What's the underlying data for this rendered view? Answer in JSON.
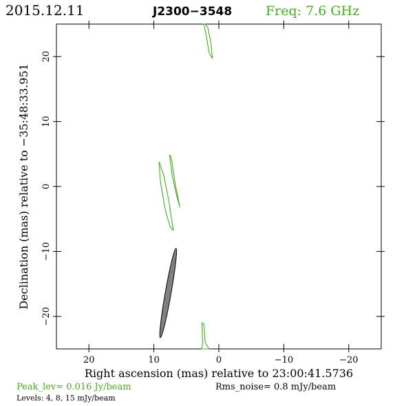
{
  "header": {
    "date": "2015.12.11",
    "source": "J2300−3548",
    "frequency": "Freq: 7.6 GHz"
  },
  "footer": {
    "peak": "Peak_lev=  0.016 Jy/beam",
    "rms": "Rms_noise=  0.8 mJy/beam",
    "levels": "Levels:  4,  8,  15 mJy/beam"
  },
  "colors": {
    "contour": "#44aa22",
    "beam_fill": "#808080",
    "frame": "#000000"
  },
  "chart_data": {
    "type": "contour",
    "title": "J2300−3548",
    "xlabel": "Right ascension (mas) relative to 23:00:41.5736",
    "ylabel": "Declination (mas) relative to −35:48:33.951",
    "xlim": [
      25,
      -25
    ],
    "ylim": [
      -25,
      25
    ],
    "x_ticks": [
      20,
      10,
      0,
      -10,
      -20
    ],
    "y_ticks": [
      -20,
      -10,
      0,
      10,
      20
    ],
    "x_tick_labels": [
      "20",
      "10",
      "0",
      "−10",
      "−20"
    ],
    "y_tick_labels": [
      "−20",
      "−10",
      "0",
      "10",
      "20"
    ],
    "levels_mJy_per_beam": [
      4,
      8,
      15
    ],
    "contours": [
      {
        "points": [
          [
            1.0,
            19.7
          ],
          [
            1.2,
            22.0
          ],
          [
            1.7,
            24.5
          ],
          [
            2.1,
            25.0
          ],
          [
            2.3,
            25.0
          ],
          [
            1.9,
            23.0
          ],
          [
            1.5,
            20.6
          ],
          [
            1.0,
            19.7
          ]
        ]
      },
      {
        "points": [
          [
            6.0,
            -3.2
          ],
          [
            6.7,
            0.3
          ],
          [
            7.3,
            4.3
          ],
          [
            7.6,
            4.9
          ],
          [
            7.2,
            1.8
          ],
          [
            6.5,
            -1.3
          ],
          [
            6.0,
            -3.2
          ]
        ]
      },
      {
        "points": [
          [
            7.0,
            -6.8
          ],
          [
            7.7,
            -2.2
          ],
          [
            8.5,
            1.8
          ],
          [
            9.2,
            3.8
          ],
          [
            9.0,
            0.8
          ],
          [
            8.2,
            -3.8
          ],
          [
            7.5,
            -6.2
          ],
          [
            7.0,
            -6.8
          ]
        ]
      },
      {
        "points": [
          [
            1.5,
            -25.0
          ],
          [
            2.1,
            -24.0
          ],
          [
            2.3,
            -21.2
          ],
          [
            2.6,
            -21.0
          ],
          [
            2.5,
            -24.0
          ],
          [
            2.6,
            -25.0
          ],
          [
            1.5,
            -25.0
          ]
        ]
      }
    ],
    "beam": {
      "center": [
        7.8,
        -16.4
      ],
      "major_mas": 14.0,
      "minor_mas": 0.9,
      "pa_deg": 10
    },
    "grid": false
  }
}
